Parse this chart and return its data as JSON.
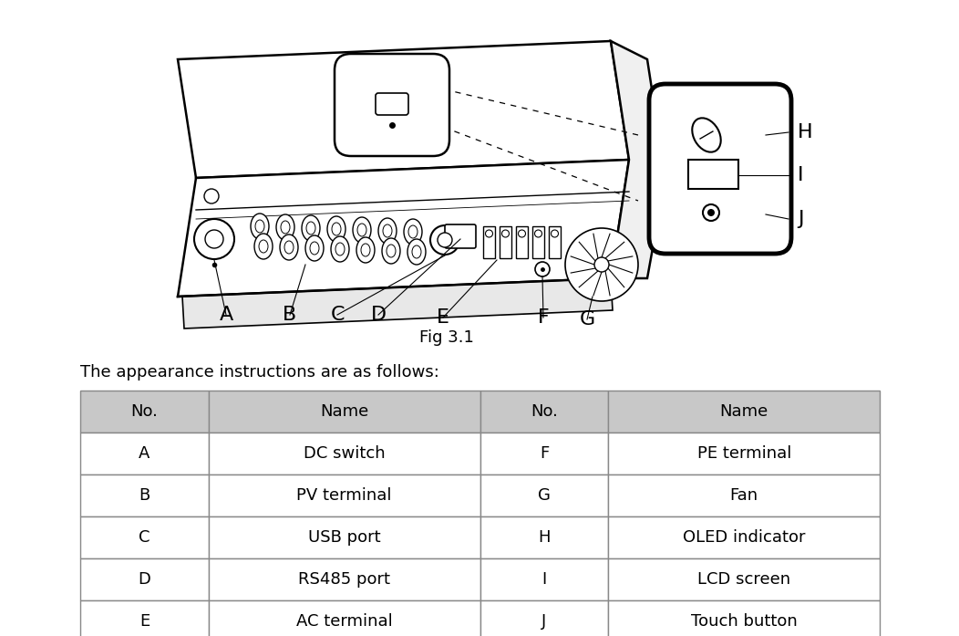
{
  "fig_label": "Fig 3.1",
  "intro_text": "The appearance instructions are as follows:",
  "table_headers": [
    "No.",
    "Name",
    "No.",
    "Name"
  ],
  "table_rows": [
    [
      "A",
      "DC switch",
      "F",
      "PE terminal"
    ],
    [
      "B",
      "PV terminal",
      "G",
      "Fan"
    ],
    [
      "C",
      "USB port",
      "H",
      "OLED indicator"
    ],
    [
      "D",
      "RS485 port",
      "I",
      "LCD screen"
    ],
    [
      "E",
      "AC terminal",
      "J",
      "Touch button"
    ]
  ],
  "header_bg": "#c8c8c8",
  "table_border_color": "#888888",
  "header_font_size": 13,
  "row_font_size": 13,
  "intro_font_size": 13,
  "fig_label_font_size": 12,
  "background_color": "#ffffff"
}
